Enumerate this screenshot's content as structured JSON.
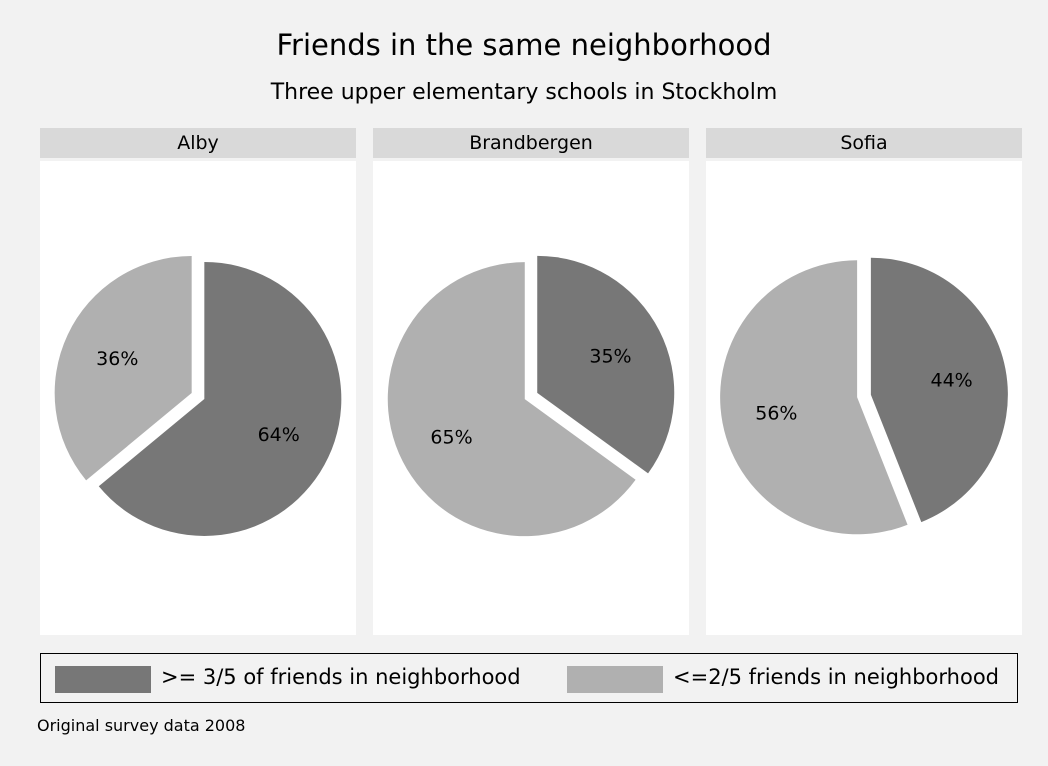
{
  "chart_data": {
    "type": "pie",
    "title": "Friends in the same neighborhood",
    "subtitle": "Three upper elementary schools in Stockholm",
    "note": "Original survey data 2008",
    "legend": {
      "placement": "bottom",
      "entries": [
        {
          "label": ">= 3/5 of friends in neighborhood",
          "color": "#777777"
        },
        {
          "label": "<=2/5 friends in neighborhood",
          "color": "#b0b0b0"
        }
      ]
    },
    "panels": [
      {
        "name": "Alby",
        "slices": [
          {
            "category": ">= 3/5 of friends in neighborhood",
            "value": 64,
            "label": "64%",
            "color": "#777777"
          },
          {
            "category": "<=2/5 friends in neighborhood",
            "value": 36,
            "label": "36%",
            "color": "#b0b0b0"
          }
        ]
      },
      {
        "name": "Brandbergen",
        "slices": [
          {
            "category": ">= 3/5 of friends in neighborhood",
            "value": 35,
            "label": "35%",
            "color": "#777777"
          },
          {
            "category": "<=2/5 friends in neighborhood",
            "value": 65,
            "label": "65%",
            "color": "#b0b0b0"
          }
        ]
      },
      {
        "name": "Sofia",
        "slices": [
          {
            "category": ">= 3/5 of friends in neighborhood",
            "value": 44,
            "label": "44%",
            "color": "#777777"
          },
          {
            "category": "<=2/5 friends in neighborhood",
            "value": 56,
            "label": "56%",
            "color": "#b0b0b0"
          }
        ]
      }
    ]
  }
}
